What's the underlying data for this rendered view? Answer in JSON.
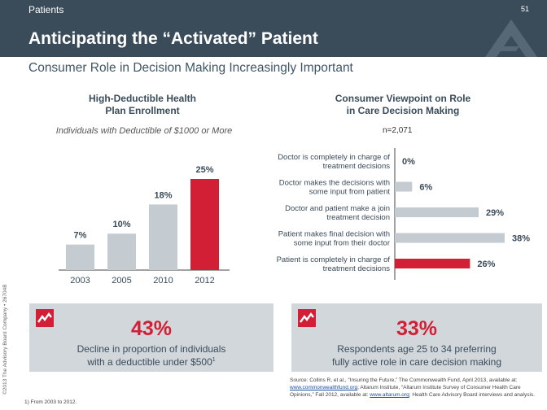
{
  "header": {
    "section": "Patients",
    "page_number": "51",
    "title": "Anticipating the “Activated” Patient"
  },
  "subtitle": "Consumer Role in Decision Making Increasingly Important",
  "left_chart": {
    "title_line1": "High-Deductible Health",
    "title_line2": "Plan Enrollment",
    "subtitle": "Individuals with Deductible of $1000 or More"
  },
  "right_chart": {
    "title_line1": "Consumer Viewpoint on Role",
    "title_line2": "in Care Decision Making",
    "n_label": "n=2,071"
  },
  "chart_data": [
    {
      "type": "bar",
      "orientation": "vertical",
      "title": "High-Deductible Health Plan Enrollment",
      "subtitle": "Individuals with Deductible of $1000 or More",
      "categories": [
        "2003",
        "2005",
        "2010",
        "2012"
      ],
      "values": [
        7,
        10,
        18,
        25
      ],
      "value_labels": [
        "7%",
        "10%",
        "18%",
        "25%"
      ],
      "highlight_index": 3,
      "ylim": [
        0,
        25
      ],
      "grid": false
    },
    {
      "type": "bar",
      "orientation": "horizontal",
      "title": "Consumer Viewpoint on Role in Care Decision Making",
      "n": "n=2,071",
      "categories": [
        [
          "Doctor is completely in charge of",
          "treatment decisions"
        ],
        [
          "Doctor makes the decisions with",
          "some input from patient"
        ],
        [
          "Doctor and patient make a join",
          "treatment decision"
        ],
        [
          "Patient makes final decision with",
          "some input from their doctor"
        ],
        [
          "Patient is completely in charge of",
          "treatment decisions"
        ]
      ],
      "values": [
        0,
        6,
        29,
        38,
        26
      ],
      "value_labels": [
        "0%",
        "6%",
        "29%",
        "38%",
        "26%"
      ],
      "highlight_index": 4,
      "xlim": [
        0,
        38
      ],
      "grid": false
    }
  ],
  "colors": {
    "header_bg": "#3a4b5a",
    "bar": "#c5ccd1",
    "highlight": "#d21f35",
    "callout_bg": "#d2d7db"
  },
  "callouts": [
    {
      "value": "43%",
      "line1": "Decline in proportion of individuals",
      "line2": "with a deductible under $500",
      "sup": "1",
      "icon": "trend-icon"
    },
    {
      "value": "33%",
      "line1": "Respondents age 25 to 34 preferring",
      "line2": "fully active role in care decision making",
      "sup": "",
      "icon": "trend-icon"
    }
  ],
  "copyright": "©2013 The Advisory Board Company • 26704B",
  "footnote": "1)  From 2003 to 2012.",
  "source": {
    "prefix": "Source: Collins R, et al., “Insuring the Future,” The Commonwealth Fund, April 2013, available at:",
    "link1": "www.commonwealthfund.org",
    "middle": "; Altarum Institute, “Altarum Institute Survey of Consumer Health Care Opinions,” Fall 2012, available at:",
    "link2": "www.altarum.org",
    "suffix": "; Health Care Advisory Board interviews and analysis."
  }
}
